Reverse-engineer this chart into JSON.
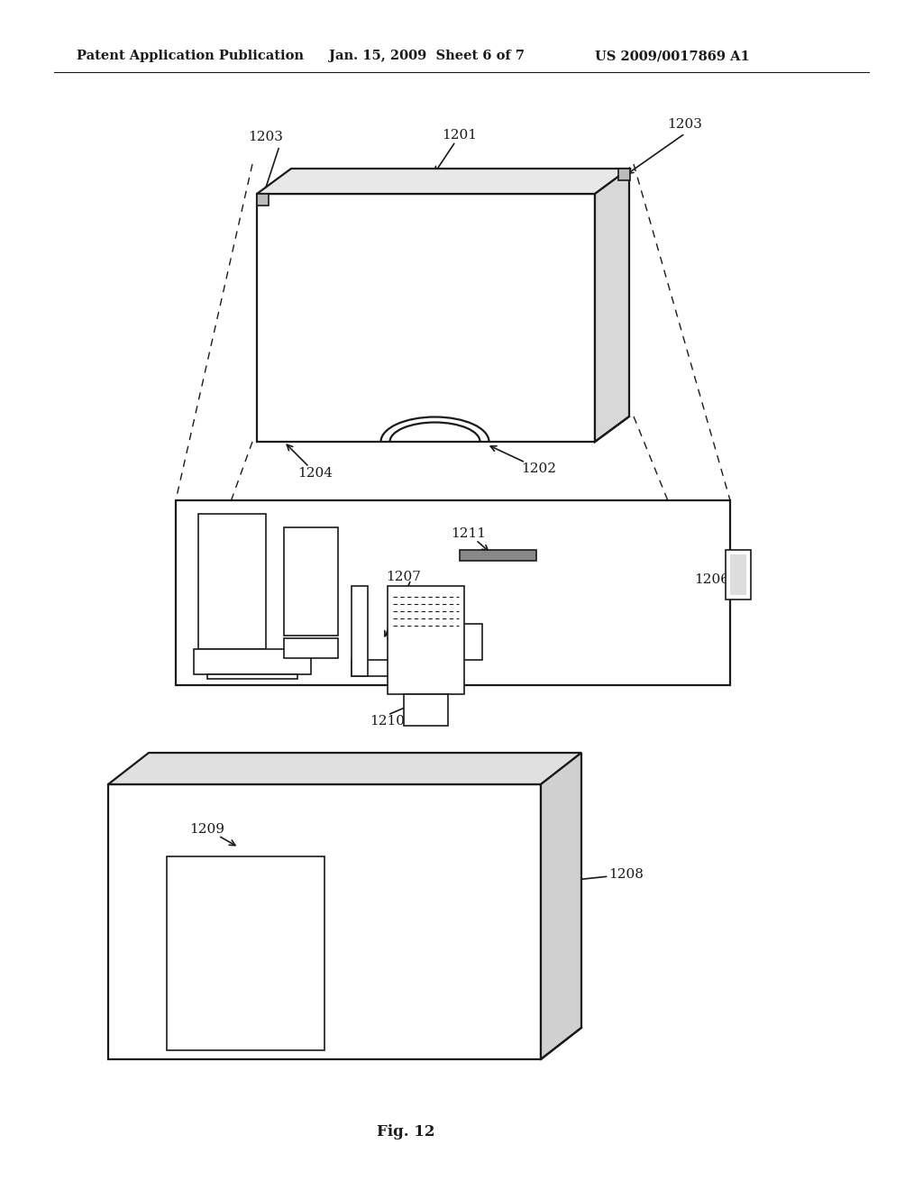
{
  "bg_color": "#ffffff",
  "text_color": "#1a1a1a",
  "header_left": "Patent Application Publication",
  "header_mid": "Jan. 15, 2009  Sheet 6 of 7",
  "header_right": "US 2009/0017869 A1",
  "fig_label": "Fig. 12",
  "line_color": "#1a1a1a"
}
